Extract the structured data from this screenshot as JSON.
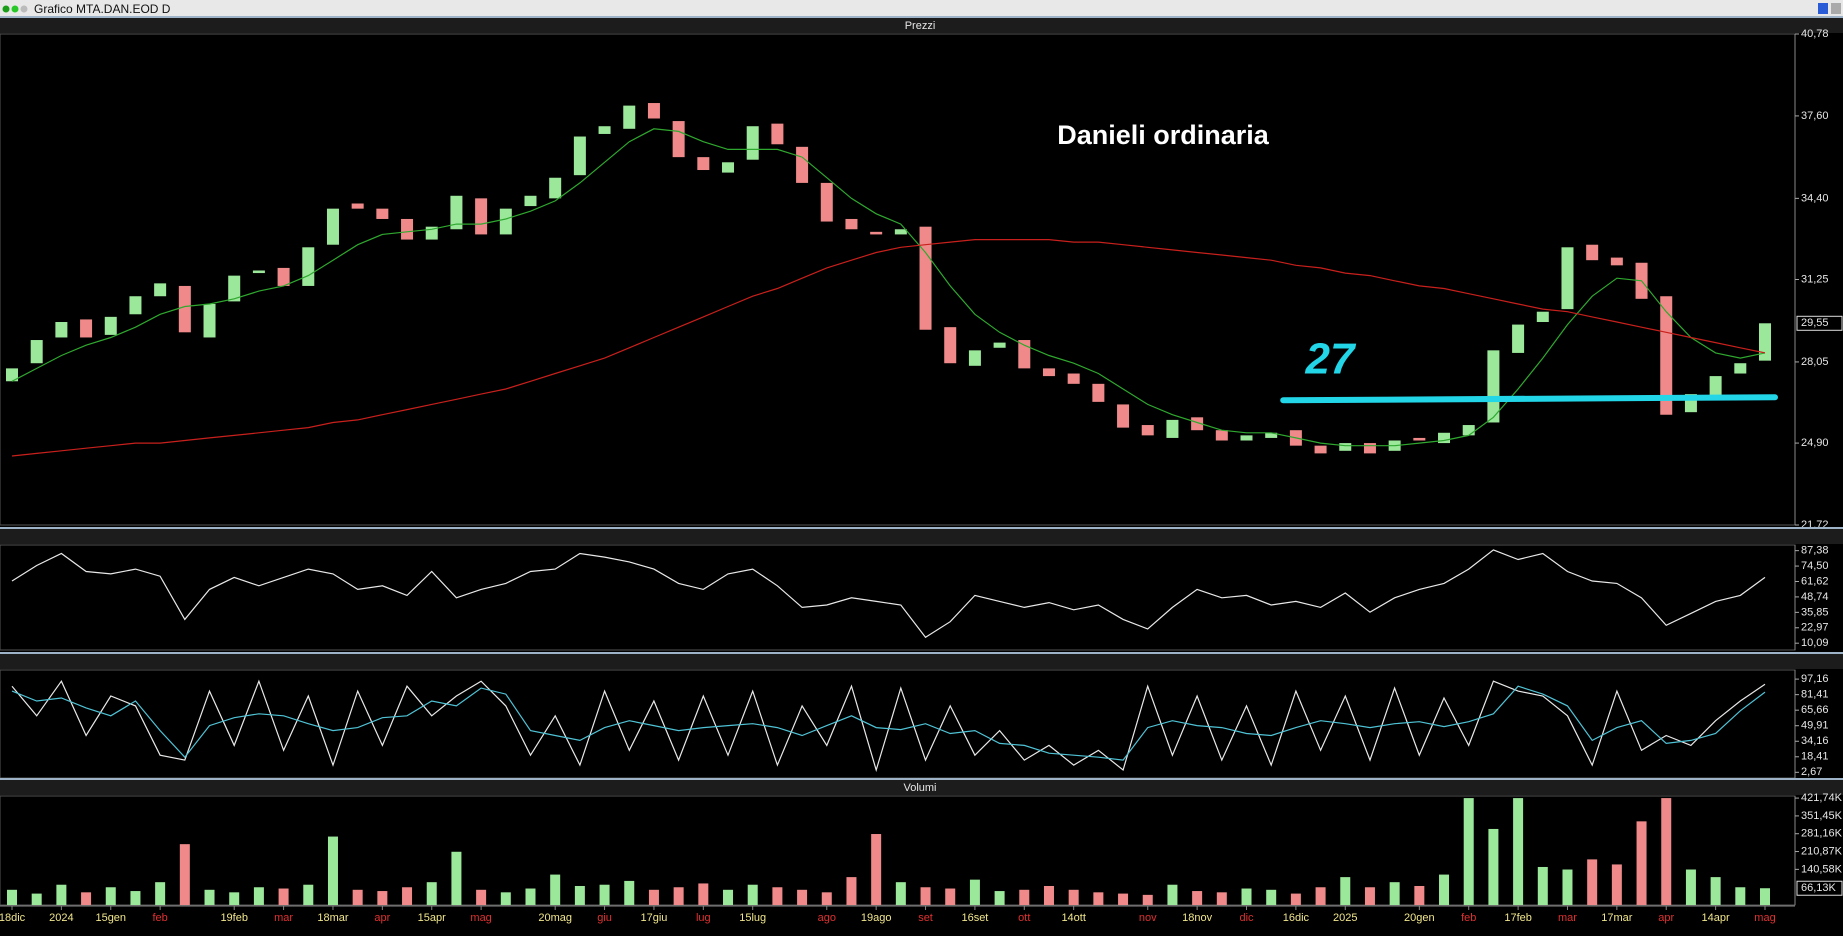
{
  "window": {
    "title": "Grafico MTA.DAN.EOD D"
  },
  "chart_data": [
    {
      "type": "candlestick",
      "title": "Prezzi",
      "categories": [
        "18dic",
        null,
        "2024",
        null,
        "15gen",
        null,
        "feb",
        null,
        null,
        "19feb",
        null,
        "mar",
        null,
        "18mar",
        null,
        "apr",
        null,
        "15apr",
        null,
        "mag",
        null,
        null,
        "20mag",
        null,
        "giu",
        null,
        "17giu",
        null,
        "lug",
        null,
        "15lug",
        null,
        null,
        "ago",
        null,
        "19ago",
        null,
        "set",
        null,
        "16set",
        null,
        "ott",
        null,
        "14ott",
        null,
        null,
        "nov",
        null,
        "18nov",
        null,
        "dic",
        null,
        "16dic",
        null,
        "2025",
        null,
        null,
        "20gen",
        null,
        "feb",
        null,
        "17feb",
        null,
        "mar",
        null,
        "17mar",
        null,
        "apr",
        null,
        "14apr",
        null,
        "mag"
      ],
      "open": [
        27.3,
        28.0,
        29.0,
        29.7,
        29.1,
        29.9,
        30.6,
        31.0,
        29.0,
        30.4,
        31.5,
        31.7,
        31.0,
        32.6,
        34.2,
        34.0,
        33.6,
        32.8,
        33.2,
        34.4,
        33.0,
        34.1,
        34.4,
        35.3,
        36.9,
        37.1,
        38.1,
        37.4,
        36.0,
        35.4,
        35.9,
        37.3,
        36.4,
        35.0,
        33.6,
        33.1,
        33.0,
        33.3,
        29.4,
        27.9,
        28.6,
        28.9,
        27.8,
        27.6,
        27.2,
        26.4,
        25.6,
        25.1,
        25.9,
        25.4,
        25.0,
        25.1,
        25.4,
        24.8,
        24.6,
        24.9,
        24.6,
        25.1,
        24.9,
        25.2,
        25.7,
        28.4,
        29.6,
        30.1,
        32.6,
        32.1,
        31.9,
        30.6,
        26.1,
        26.7,
        27.6,
        28.1
      ],
      "close": [
        27.8,
        28.9,
        29.6,
        29.0,
        29.8,
        30.6,
        31.1,
        29.2,
        30.3,
        31.4,
        31.6,
        31.0,
        32.5,
        34.0,
        34.0,
        33.6,
        32.8,
        33.3,
        34.5,
        33.0,
        34.0,
        34.5,
        35.2,
        36.8,
        37.2,
        38.0,
        37.5,
        36.0,
        35.5,
        35.8,
        37.2,
        36.5,
        35.0,
        33.5,
        33.2,
        33.0,
        33.2,
        29.3,
        28.0,
        28.5,
        28.8,
        27.8,
        27.5,
        27.2,
        26.5,
        25.5,
        25.2,
        25.8,
        25.4,
        25.0,
        25.2,
        25.3,
        24.8,
        24.5,
        24.9,
        24.5,
        25.0,
        25.0,
        25.3,
        25.6,
        28.5,
        29.5,
        30.0,
        32.5,
        32.0,
        31.8,
        30.5,
        26.0,
        26.8,
        27.5,
        28.0,
        29.55
      ],
      "up_color": "#9be89b",
      "down_color": "#f08a8a",
      "series": [
        {
          "color": "#2fa82f",
          "values": [
            27.3,
            27.8,
            28.3,
            28.7,
            29.0,
            29.4,
            29.9,
            30.2,
            30.3,
            30.5,
            30.8,
            31.0,
            31.4,
            32.0,
            32.6,
            33.0,
            33.1,
            33.2,
            33.4,
            33.4,
            33.6,
            33.9,
            34.3,
            35.0,
            35.8,
            36.6,
            37.1,
            37.0,
            36.6,
            36.3,
            36.3,
            36.3,
            36.0,
            35.2,
            34.4,
            33.8,
            33.4,
            32.3,
            31.0,
            29.9,
            29.2,
            28.7,
            28.3,
            28.0,
            27.6,
            27.0,
            26.4,
            26.0,
            25.7,
            25.4,
            25.3,
            25.3,
            25.1,
            24.9,
            24.8,
            24.8,
            24.8,
            24.9,
            25.0,
            25.2,
            25.9,
            27.0,
            28.2,
            29.5,
            30.6,
            31.3,
            31.2,
            30.0,
            29.0,
            28.4,
            28.2,
            28.4
          ]
        },
        {
          "color": "#c8201c",
          "values": [
            24.4,
            24.5,
            24.6,
            24.7,
            24.8,
            24.9,
            24.9,
            25.0,
            25.1,
            25.2,
            25.3,
            25.4,
            25.5,
            25.7,
            25.8,
            26.0,
            26.2,
            26.4,
            26.6,
            26.8,
            27.0,
            27.3,
            27.6,
            27.9,
            28.2,
            28.6,
            29.0,
            29.4,
            29.8,
            30.2,
            30.6,
            30.9,
            31.3,
            31.7,
            32.0,
            32.3,
            32.5,
            32.6,
            32.7,
            32.8,
            32.8,
            32.8,
            32.8,
            32.7,
            32.7,
            32.6,
            32.5,
            32.4,
            32.3,
            32.2,
            32.1,
            32.0,
            31.8,
            31.7,
            31.5,
            31.4,
            31.2,
            31.0,
            30.9,
            30.7,
            30.5,
            30.3,
            30.1,
            30.0,
            29.8,
            29.6,
            29.4,
            29.2,
            29.0,
            28.8,
            28.6,
            28.4
          ]
        }
      ],
      "ylim": [
        21.72,
        40.78
      ],
      "yticks": [
        {
          "value": 40.78,
          "label": "40,78"
        },
        {
          "value": 37.6,
          "label": "37,60"
        },
        {
          "value": 34.4,
          "label": "34,40"
        },
        {
          "value": 31.25,
          "label": "31,25"
        },
        {
          "value": 28.05,
          "label": "28,05"
        },
        {
          "value": 24.9,
          "label": "24,90"
        },
        {
          "value": 21.72,
          "label": "21,72"
        }
      ],
      "last_value": {
        "value": 29.55,
        "label": "29,55"
      },
      "hline": {
        "value": 26.6,
        "color": "#22d6e8"
      },
      "annotations": [
        {
          "text": "Danieli ordinaria",
          "color": "#ffffff"
        },
        {
          "text": "27",
          "color": "#22d6e8"
        }
      ]
    },
    {
      "type": "line",
      "series": [
        {
          "color": "#e8e8e8",
          "values": [
            62,
            75,
            85,
            70,
            68,
            72,
            66,
            30,
            55,
            65,
            58,
            65,
            72,
            68,
            55,
            58,
            50,
            70,
            48,
            55,
            60,
            70,
            72,
            85,
            82,
            78,
            72,
            60,
            55,
            68,
            72,
            58,
            40,
            42,
            48,
            45,
            42,
            15,
            28,
            50,
            45,
            40,
            44,
            38,
            42,
            30,
            22,
            40,
            55,
            48,
            50,
            42,
            45,
            40,
            52,
            36,
            48,
            55,
            60,
            72,
            88,
            80,
            85,
            70,
            62,
            60,
            48,
            25,
            35,
            45,
            50,
            65
          ]
        }
      ],
      "ylim": [
        4.4,
        92.1
      ],
      "yticks": [
        {
          "value": 87.38,
          "label": "87,38"
        },
        {
          "value": 74.5,
          "label": "74,50"
        },
        {
          "value": 61.62,
          "label": "61,62"
        },
        {
          "value": 48.74,
          "label": "48,74"
        },
        {
          "value": 35.85,
          "label": "35,85"
        },
        {
          "value": 22.97,
          "label": "22,97"
        },
        {
          "value": 10.09,
          "label": "10,09"
        }
      ]
    },
    {
      "type": "line",
      "series": [
        {
          "color": "#e8e8e8",
          "values": [
            90,
            60,
            95,
            40,
            80,
            70,
            20,
            15,
            85,
            30,
            95,
            25,
            80,
            10,
            85,
            30,
            90,
            60,
            80,
            95,
            70,
            20,
            60,
            10,
            85,
            25,
            75,
            15,
            80,
            20,
            85,
            10,
            70,
            30,
            90,
            5,
            88,
            15,
            70,
            20,
            45,
            15,
            30,
            10,
            25,
            5,
            90,
            20,
            80,
            15,
            70,
            10,
            85,
            25,
            80,
            15,
            88,
            20,
            78,
            30,
            95,
            85,
            80,
            60,
            10,
            85,
            25,
            40,
            30,
            55,
            75,
            92
          ]
        },
        {
          "color": "#4fc3d6",
          "values": [
            85,
            75,
            78,
            68,
            60,
            75,
            45,
            18,
            50,
            58,
            62,
            60,
            52,
            45,
            48,
            58,
            60,
            75,
            70,
            88,
            82,
            45,
            40,
            35,
            48,
            55,
            50,
            45,
            48,
            50,
            52,
            48,
            40,
            50,
            60,
            48,
            46,
            52,
            42,
            45,
            32,
            30,
            22,
            20,
            18,
            15,
            48,
            55,
            50,
            48,
            42,
            40,
            48,
            55,
            52,
            48,
            52,
            54,
            49,
            54,
            62,
            90,
            82,
            70,
            35,
            48,
            55,
            32,
            35,
            42,
            65,
            84
          ]
        }
      ],
      "ylim": [
        -3.1,
        106.4
      ],
      "yticks": [
        {
          "value": 97.16,
          "label": "97,16"
        },
        {
          "value": 81.41,
          "label": "81,41"
        },
        {
          "value": 65.66,
          "label": "65,66"
        },
        {
          "value": 49.91,
          "label": "49,91"
        },
        {
          "value": 34.16,
          "label": "34,16"
        },
        {
          "value": 18.41,
          "label": "18,41"
        },
        {
          "value": 2.67,
          "label": "2,67"
        }
      ]
    },
    {
      "type": "bar",
      "title": "Volumi",
      "values": [
        60000,
        45000,
        80000,
        50000,
        70000,
        55000,
        90000,
        240000,
        60000,
        50000,
        70000,
        65000,
        80000,
        270000,
        60000,
        55000,
        70000,
        90000,
        210000,
        60000,
        50000,
        65000,
        120000,
        75000,
        80000,
        95000,
        60000,
        70000,
        85000,
        60000,
        80000,
        70000,
        60000,
        50000,
        110000,
        280000,
        90000,
        70000,
        65000,
        100000,
        55000,
        60000,
        75000,
        60000,
        50000,
        45000,
        40000,
        80000,
        55000,
        50000,
        65000,
        60000,
        45000,
        70000,
        110000,
        70000,
        90000,
        75000,
        120000,
        421740,
        300000,
        421740,
        150000,
        140000,
        180000,
        160000,
        330000,
        421740,
        140000,
        110000,
        70000,
        66130
      ],
      "ylim": [
        0,
        430000
      ],
      "yticks": [
        {
          "value": 421740,
          "label": "421,74K"
        },
        {
          "value": 351450,
          "label": "351,45K"
        },
        {
          "value": 281160,
          "label": "281,16K"
        },
        {
          "value": 210870,
          "label": "210,87K"
        },
        {
          "value": 140580,
          "label": "140,58K"
        }
      ],
      "last_value": {
        "value": 66130,
        "label": "66,13K"
      }
    }
  ]
}
